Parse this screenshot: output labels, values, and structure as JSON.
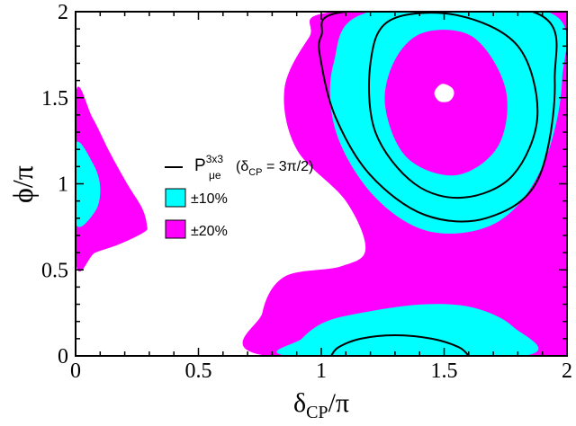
{
  "chart_data": {
    "type": "contour",
    "title": "",
    "xlabel": {
      "main": "δ",
      "sub": "CP",
      "tail": "/π"
    },
    "ylabel": "ϕ/π",
    "xlim": [
      0,
      2
    ],
    "ylim": [
      0,
      2
    ],
    "xticks": [
      "0",
      "0.5",
      "1",
      "1.5",
      "2"
    ],
    "yticks": [
      "0",
      "0.5",
      "1",
      "1.5",
      "2"
    ],
    "grid": false,
    "legend_position": "center-left",
    "colors": {
      "band_10": "#00ffff",
      "band_20": "#ff00ff",
      "contour": "#000000",
      "background": "#ffffff"
    },
    "legend": [
      {
        "kind": "line",
        "label": "P",
        "sup": "3x3",
        "sub": "μe",
        "tail_pre": "(δ",
        "tail_sub": "CP",
        "tail_post": " = 3π/2)"
      },
      {
        "kind": "swatch",
        "color": "#00ffff",
        "label": "±10%"
      },
      {
        "kind": "swatch",
        "color": "#ff00ff",
        "label": "±20%"
      }
    ],
    "regions": {
      "main_magenta": [
        [
          1.06,
          2.0
        ],
        [
          2.0,
          2.0
        ],
        [
          2.0,
          0.0
        ],
        [
          0.78,
          0.0
        ],
        [
          0.76,
          0.25
        ],
        [
          0.85,
          0.46
        ],
        [
          1.08,
          0.52
        ],
        [
          1.18,
          0.62
        ],
        [
          1.1,
          0.9
        ],
        [
          0.9,
          1.2
        ],
        [
          0.85,
          1.55
        ],
        [
          0.95,
          1.85
        ]
      ],
      "upper_cyan": [
        [
          1.2,
          2.0
        ],
        [
          1.92,
          2.0
        ],
        [
          1.98,
          1.6
        ],
        [
          1.9,
          1.1
        ],
        [
          1.72,
          0.78
        ],
        [
          1.45,
          0.72
        ],
        [
          1.22,
          0.92
        ],
        [
          1.06,
          1.3
        ],
        [
          1.05,
          1.7
        ]
      ],
      "upper_magenta_core": [
        [
          1.42,
          1.88
        ],
        [
          1.62,
          1.85
        ],
        [
          1.75,
          1.55
        ],
        [
          1.72,
          1.22
        ],
        [
          1.55,
          1.05
        ],
        [
          1.35,
          1.15
        ],
        [
          1.26,
          1.45
        ],
        [
          1.3,
          1.72
        ]
      ],
      "upper_hole": [
        [
          1.49,
          1.58
        ],
        [
          1.53,
          1.56
        ],
        [
          1.54,
          1.52
        ],
        [
          1.52,
          1.48
        ],
        [
          1.48,
          1.48
        ],
        [
          1.46,
          1.53
        ]
      ],
      "upper_contour_outer": [
        [
          1.0,
          1.86
        ],
        [
          1.1,
          2.0
        ],
        [
          1.86,
          2.0
        ],
        [
          1.95,
          1.6
        ],
        [
          1.88,
          1.02
        ],
        [
          1.67,
          0.8
        ],
        [
          1.42,
          0.82
        ],
        [
          1.2,
          1.05
        ],
        [
          1.06,
          1.38
        ],
        [
          1.0,
          1.7
        ]
      ],
      "upper_contour_inner": [
        [
          1.28,
          1.95
        ],
        [
          1.55,
          1.98
        ],
        [
          1.8,
          1.8
        ],
        [
          1.88,
          1.4
        ],
        [
          1.78,
          1.05
        ],
        [
          1.58,
          0.92
        ],
        [
          1.38,
          1.0
        ],
        [
          1.22,
          1.3
        ],
        [
          1.2,
          1.7
        ]
      ],
      "lower_cyan": [
        [
          0.88,
          0.0
        ],
        [
          1.82,
          0.0
        ],
        [
          1.78,
          0.17
        ],
        [
          1.62,
          0.28
        ],
        [
          1.42,
          0.3
        ],
        [
          1.2,
          0.26
        ],
        [
          1.02,
          0.2
        ],
        [
          0.92,
          0.1
        ]
      ],
      "lower_contour": [
        [
          1.04,
          0.0
        ],
        [
          1.07,
          0.05
        ],
        [
          1.16,
          0.1
        ],
        [
          1.3,
          0.12
        ],
        [
          1.45,
          0.1
        ],
        [
          1.56,
          0.05
        ],
        [
          1.6,
          0.0
        ]
      ],
      "left_magenta": [
        [
          0.0,
          1.52
        ],
        [
          0.07,
          1.38
        ],
        [
          0.14,
          1.18
        ],
        [
          0.21,
          1.0
        ],
        [
          0.27,
          0.86
        ],
        [
          0.29,
          0.76
        ],
        [
          0.28,
          0.72
        ],
        [
          0.18,
          0.65
        ],
        [
          0.08,
          0.6
        ],
        [
          0.0,
          0.55
        ]
      ],
      "left_cyan": [
        [
          0.0,
          1.23
        ],
        [
          0.07,
          1.12
        ],
        [
          0.1,
          0.98
        ],
        [
          0.08,
          0.84
        ],
        [
          0.0,
          0.77
        ]
      ]
    }
  }
}
